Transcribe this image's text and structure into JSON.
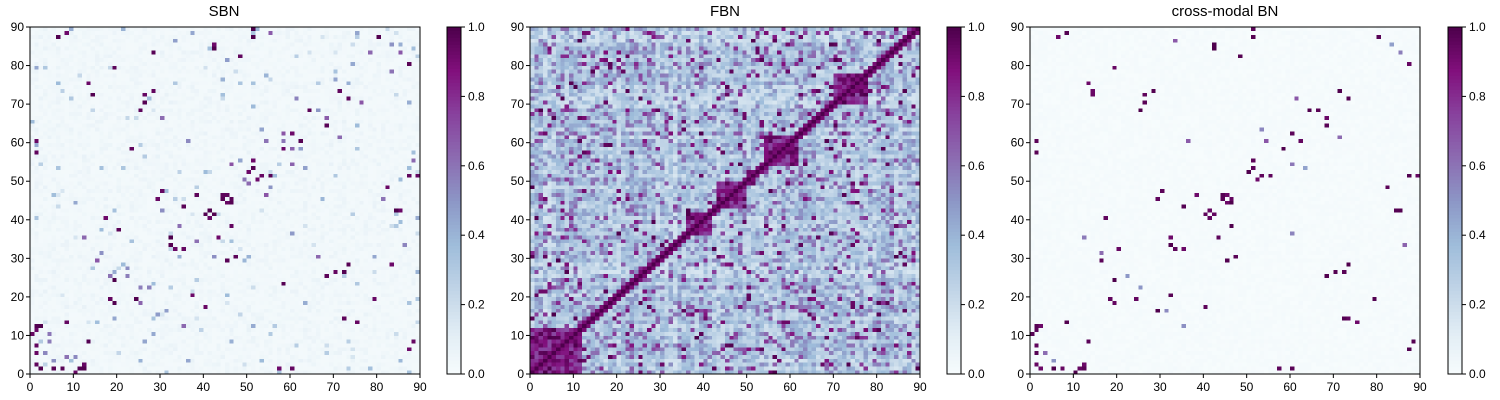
{
  "figure": {
    "panel_count": 3
  },
  "chart_data": [
    {
      "type": "heatmap",
      "title": "SBN",
      "xlabel": "",
      "ylabel": "",
      "xlim": [
        0,
        90
      ],
      "ylim": [
        0,
        90
      ],
      "xticks": [
        "0",
        "10",
        "20",
        "30",
        "40",
        "50",
        "60",
        "70",
        "80",
        "90"
      ],
      "yticks": [
        "0",
        "10",
        "20",
        "30",
        "40",
        "50",
        "60",
        "70",
        "80",
        "90"
      ],
      "grid_size": 90,
      "colormap": "BuPu",
      "colorbar": {
        "range": [
          0,
          1
        ],
        "ticks": [
          "0.0",
          "0.2",
          "0.4",
          "0.6",
          "0.8",
          "1.0"
        ]
      },
      "description_level": "sparse, mostly near 0 with scattered strong connections",
      "strong_cells": [
        [
          1,
          2
        ],
        [
          1,
          7
        ],
        [
          2,
          12
        ],
        [
          5,
          1
        ],
        [
          6,
          87
        ],
        [
          7,
          1
        ],
        [
          10,
          0
        ],
        [
          11,
          1
        ],
        [
          12,
          1
        ],
        [
          13,
          8
        ],
        [
          17,
          40
        ],
        [
          18,
          19
        ],
        [
          19,
          18
        ],
        [
          20,
          37
        ],
        [
          23,
          58
        ],
        [
          24,
          19
        ],
        [
          25,
          68
        ],
        [
          26,
          72
        ],
        [
          28,
          73
        ],
        [
          28,
          83
        ],
        [
          29,
          45
        ],
        [
          30,
          47
        ],
        [
          32,
          33
        ],
        [
          33,
          32
        ],
        [
          35,
          32
        ],
        [
          38,
          46
        ],
        [
          40,
          41
        ],
        [
          41,
          40
        ],
        [
          42,
          41
        ],
        [
          43,
          35
        ],
        [
          44,
          46
        ],
        [
          45,
          44
        ],
        [
          46,
          45
        ],
        [
          48,
          82
        ],
        [
          50,
          52
        ],
        [
          52,
          50
        ],
        [
          53,
          51
        ],
        [
          55,
          51
        ],
        [
          57,
          1
        ],
        [
          58,
          58
        ],
        [
          60,
          1
        ],
        [
          62,
          60
        ],
        [
          64,
          68
        ],
        [
          70,
          26
        ],
        [
          72,
          14
        ],
        [
          73,
          71
        ],
        [
          75,
          13
        ],
        [
          79,
          19
        ],
        [
          80,
          87
        ],
        [
          84,
          42
        ],
        [
          85,
          42
        ],
        [
          87,
          51
        ],
        [
          88,
          8
        ],
        [
          89,
          51
        ]
      ],
      "mid_cells": [
        [
          3,
          5
        ],
        [
          4,
          10
        ],
        [
          8,
          4
        ],
        [
          12,
          35
        ],
        [
          15,
          29
        ],
        [
          18,
          25
        ],
        [
          22,
          25
        ],
        [
          27,
          22
        ],
        [
          31,
          16
        ],
        [
          34,
          38
        ],
        [
          36,
          60
        ],
        [
          42,
          30
        ],
        [
          46,
          54
        ],
        [
          48,
          55
        ],
        [
          50,
          49
        ],
        [
          54,
          60
        ],
        [
          58,
          62
        ],
        [
          60,
          58
        ],
        [
          63,
          53
        ],
        [
          66,
          30
        ],
        [
          68,
          66
        ],
        [
          71,
          61
        ],
        [
          76,
          70
        ],
        [
          78,
          83
        ],
        [
          81,
          45
        ],
        [
          83,
          85
        ],
        [
          86,
          33
        ],
        [
          88,
          55
        ]
      ]
    },
    {
      "type": "heatmap",
      "title": "FBN",
      "xlabel": "",
      "ylabel": "",
      "xlim": [
        0,
        90
      ],
      "ylim": [
        0,
        90
      ],
      "xticks": [
        "0",
        "10",
        "20",
        "30",
        "40",
        "50",
        "60",
        "70",
        "80",
        "90"
      ],
      "yticks": [
        "0",
        "10",
        "20",
        "30",
        "40",
        "50",
        "60",
        "70",
        "80",
        "90"
      ],
      "grid_size": 90,
      "colormap": "BuPu",
      "colorbar": {
        "range": [
          0,
          1
        ],
        "ticks": [
          "0.0",
          "0.2",
          "0.4",
          "0.6",
          "0.8",
          "1.0"
        ]
      },
      "description_level": "dense, widespread medium values with strong diagonal and block clusters",
      "dense_blocks": [
        [
          43,
          50,
          43,
          50
        ],
        [
          70,
          78,
          70,
          78
        ],
        [
          0,
          12,
          0,
          12
        ],
        [
          36,
          42,
          36,
          42
        ],
        [
          54,
          62,
          54,
          62
        ]
      ]
    },
    {
      "type": "heatmap",
      "title": "cross-modal BN",
      "xlabel": "",
      "ylabel": "",
      "xlim": [
        0,
        90
      ],
      "ylim": [
        0,
        90
      ],
      "xticks": [
        "0",
        "10",
        "20",
        "30",
        "40",
        "50",
        "60",
        "70",
        "80",
        "90"
      ],
      "yticks": [
        "0",
        "10",
        "20",
        "30",
        "40",
        "50",
        "60",
        "70",
        "80",
        "90"
      ],
      "grid_size": 90,
      "colormap": "BuPu",
      "colorbar": {
        "range": [
          0,
          1
        ],
        "ticks": [
          "0.0",
          "0.2",
          "0.4",
          "0.6",
          "0.8",
          "1.0"
        ]
      },
      "description_level": "sparse, binary-like strong connections near 0 or 1",
      "strong_cells": [
        [
          1,
          2
        ],
        [
          1,
          7
        ],
        [
          2,
          12
        ],
        [
          5,
          1
        ],
        [
          6,
          87
        ],
        [
          7,
          1
        ],
        [
          10,
          0
        ],
        [
          11,
          1
        ],
        [
          12,
          1
        ],
        [
          13,
          8
        ],
        [
          14,
          73
        ],
        [
          16,
          29
        ],
        [
          17,
          40
        ],
        [
          18,
          19
        ],
        [
          19,
          18
        ],
        [
          20,
          32
        ],
        [
          24,
          19
        ],
        [
          25,
          68
        ],
        [
          26,
          72
        ],
        [
          28,
          73
        ],
        [
          29,
          45
        ],
        [
          30,
          47
        ],
        [
          32,
          33
        ],
        [
          33,
          32
        ],
        [
          35,
          32
        ],
        [
          38,
          46
        ],
        [
          40,
          41
        ],
        [
          41,
          40
        ],
        [
          42,
          41
        ],
        [
          43,
          35
        ],
        [
          44,
          46
        ],
        [
          45,
          44
        ],
        [
          46,
          45
        ],
        [
          48,
          82
        ],
        [
          50,
          52
        ],
        [
          52,
          50
        ],
        [
          53,
          51
        ],
        [
          55,
          51
        ],
        [
          57,
          1
        ],
        [
          58,
          58
        ],
        [
          60,
          1
        ],
        [
          62,
          60
        ],
        [
          64,
          68
        ],
        [
          68,
          66
        ],
        [
          70,
          26
        ],
        [
          72,
          14
        ],
        [
          73,
          71
        ],
        [
          75,
          13
        ],
        [
          79,
          19
        ],
        [
          80,
          87
        ],
        [
          84,
          42
        ],
        [
          85,
          42
        ],
        [
          87,
          51
        ],
        [
          88,
          8
        ],
        [
          89,
          51
        ]
      ],
      "mid_cells": [
        [
          3,
          5
        ],
        [
          12,
          35
        ],
        [
          22,
          25
        ],
        [
          31,
          16
        ],
        [
          36,
          60
        ],
        [
          54,
          60
        ],
        [
          63,
          53
        ],
        [
          71,
          61
        ],
        [
          83,
          85
        ],
        [
          86,
          33
        ]
      ]
    }
  ]
}
